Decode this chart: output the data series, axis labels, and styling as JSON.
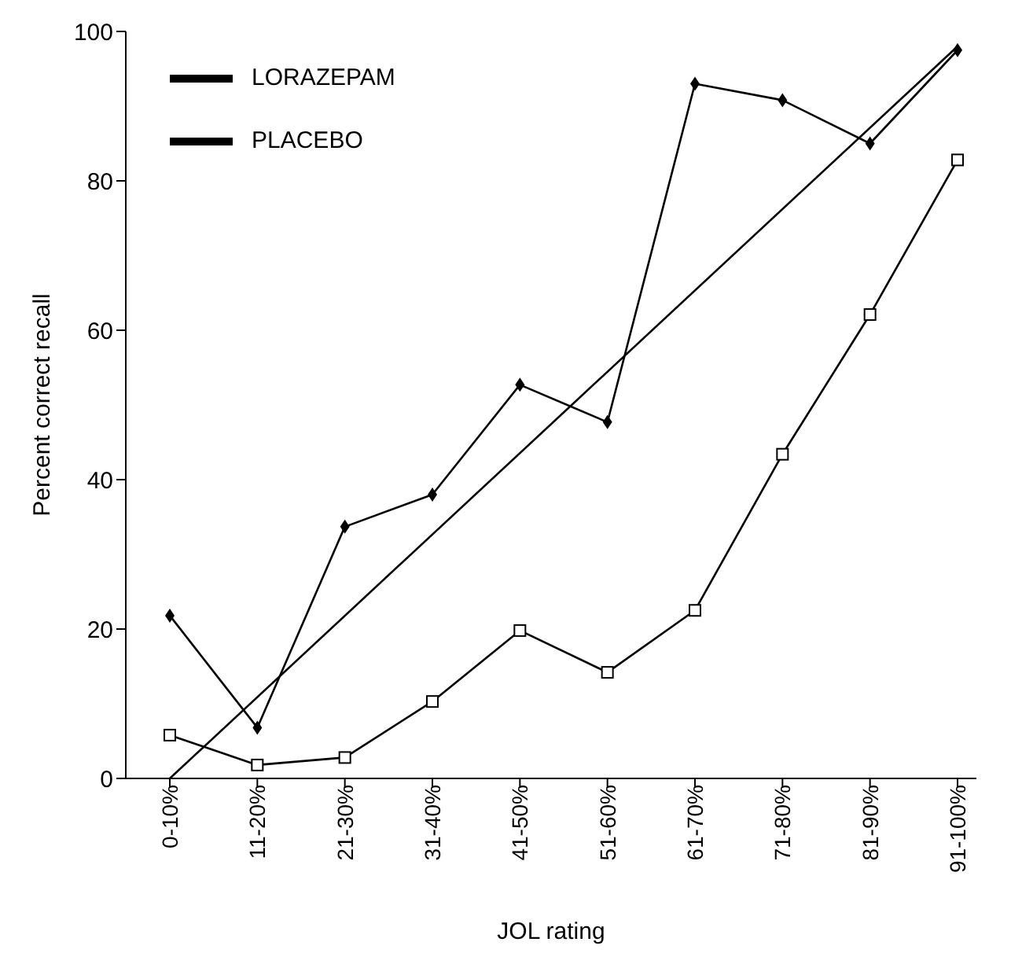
{
  "chart_data": {
    "type": "line",
    "xlabel": "JOL rating",
    "ylabel": "Percent correct recall",
    "categories": [
      "0-10%",
      "11-20%",
      "21-30%",
      "31-40%",
      "41-50%",
      "51-60%",
      "61-70%",
      "71-80%",
      "81-90%",
      "91-100%"
    ],
    "series": [
      {
        "name": "LORAZEPAM",
        "color": "#000000",
        "marker": "square",
        "values": [
          5.8,
          1.8,
          2.8,
          10.3,
          19.8,
          14.2,
          22.5,
          43.4,
          62.1,
          82.8
        ]
      },
      {
        "name": "PLACEBO",
        "color": "#000000",
        "marker": "diamond",
        "values": [
          21.8,
          6.8,
          33.7,
          38,
          52.7,
          47.7,
          93,
          90.8,
          85,
          97.5
        ]
      },
      {
        "type": "line",
        "color": "#000000",
        "marker": "none",
        "x": [
          "0-10%",
          "91-100%"
        ],
        "values": [
          0,
          98
        ]
      }
    ],
    "ylim": [
      0,
      100
    ],
    "yticks": [
      0,
      20,
      40,
      60,
      80,
      100
    ],
    "grid": false,
    "legend": "top left",
    "line_style": "solid"
  }
}
